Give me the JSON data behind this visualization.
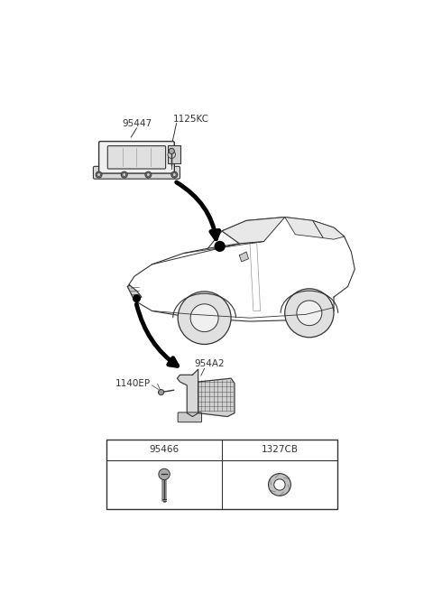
{
  "background_color": "#ffffff",
  "line_color": "#333333",
  "figsize": [
    4.8,
    6.57
  ],
  "dpi": 100,
  "label_95447": "95447",
  "label_1125KC": "1125KC",
  "label_954A2": "954A2",
  "label_1140EP": "1140EP",
  "label_95466": "95466",
  "label_1327CB": "1327CB",
  "fontsize_labels": 7.5
}
